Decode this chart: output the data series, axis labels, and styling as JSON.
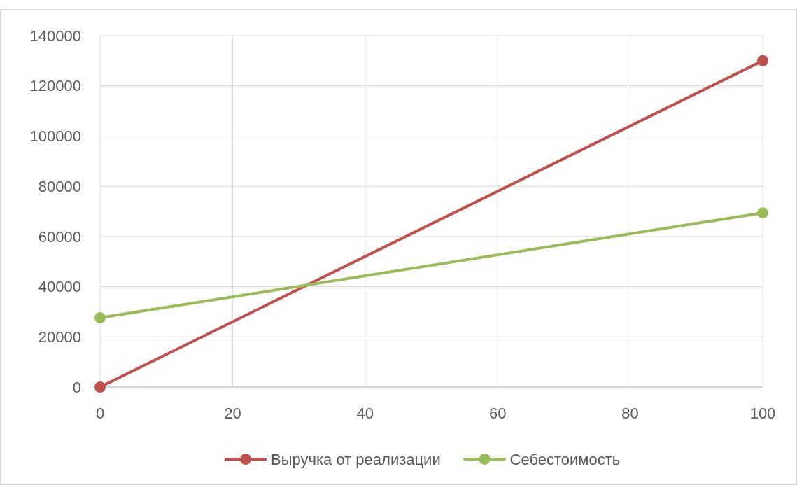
{
  "chart_data": {
    "type": "line",
    "x": [
      0,
      100
    ],
    "series": [
      {
        "name": "Выручка от реализации",
        "color": "#c0504d",
        "values": [
          0,
          130000
        ]
      },
      {
        "name": "Себестоимость",
        "color": "#9bbb59",
        "values": [
          27600,
          69400
        ]
      }
    ],
    "xlim": [
      0,
      100
    ],
    "xticks": [
      0,
      20,
      40,
      60,
      80,
      100
    ],
    "ylim": [
      0,
      140000
    ],
    "yticks": [
      0,
      20000,
      40000,
      60000,
      80000,
      100000,
      120000,
      140000
    ],
    "grid": true,
    "legend": "bottom",
    "marker": "circle",
    "line_style": "solid"
  }
}
